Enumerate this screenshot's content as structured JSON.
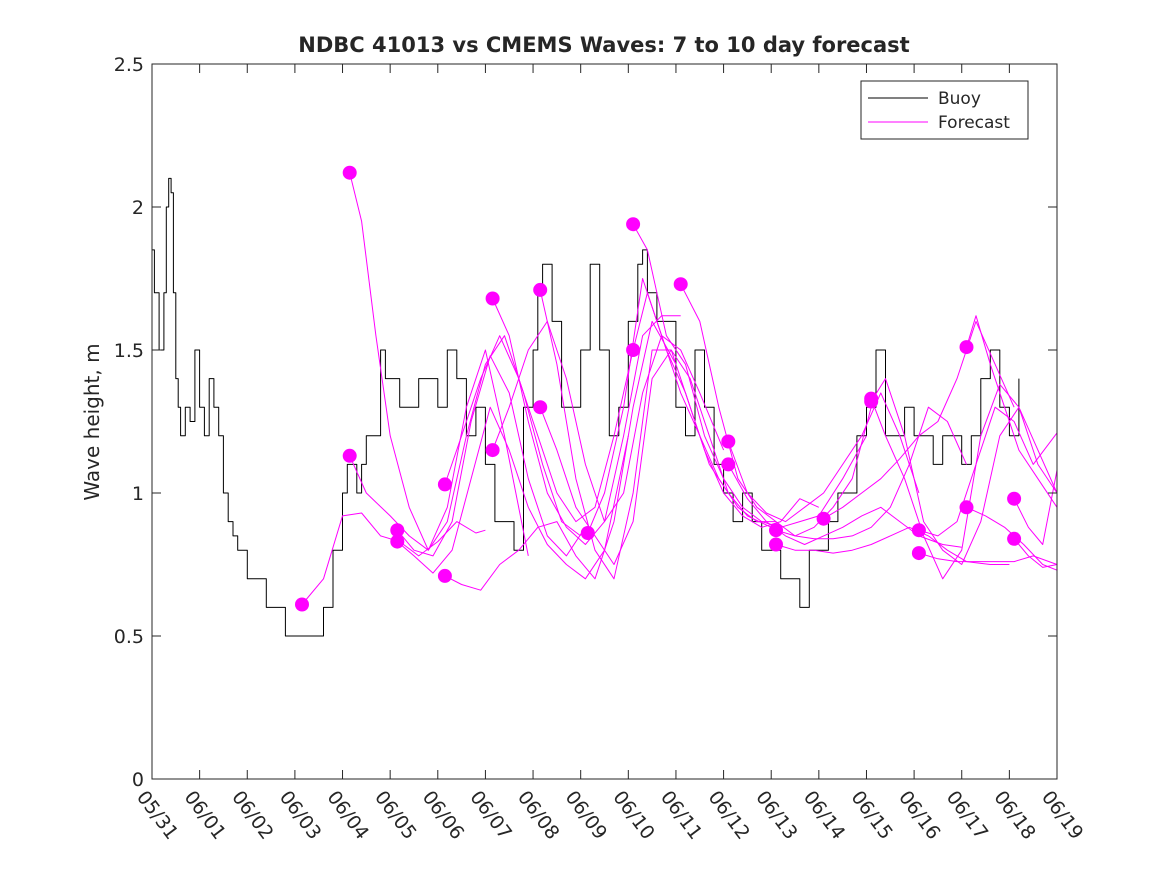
{
  "chart_data": {
    "type": "line",
    "title": "NDBC 41013 vs CMEMS Waves: 7 to 10 day forecast",
    "xlabel": "",
    "ylabel": "Wave height, m",
    "xlim_days_after_0531": [
      0,
      19
    ],
    "ylim": [
      0,
      2.5
    ],
    "yticks": [
      "0",
      "0.5",
      "1",
      "1.5",
      "2",
      "2.5"
    ],
    "xticks": [
      "05/31",
      "06/01",
      "06/02",
      "06/03",
      "06/04",
      "06/05",
      "06/06",
      "06/07",
      "06/08",
      "06/09",
      "06/10",
      "06/11",
      "06/12",
      "06/13",
      "06/14",
      "06/15",
      "06/16",
      "06/17",
      "06/18",
      "06/19"
    ],
    "grid": false,
    "legend_position": "top-right",
    "colors": {
      "buoy": "#000000",
      "forecast": "#ff00ff"
    },
    "series": [
      {
        "name": "Buoy",
        "x": [
          0,
          0.05,
          0.15,
          0.25,
          0.3,
          0.35,
          0.4,
          0.45,
          0.5,
          0.55,
          0.6,
          0.7,
          0.8,
          0.9,
          1.0,
          1.1,
          1.2,
          1.3,
          1.4,
          1.5,
          1.6,
          1.7,
          1.8,
          1.9,
          2.0,
          2.2,
          2.4,
          2.6,
          2.8,
          2.9,
          3.0,
          3.2,
          3.4,
          3.6,
          3.8,
          4.0,
          4.1,
          4.2,
          4.3,
          4.4,
          4.5,
          4.6,
          4.7,
          4.8,
          4.9,
          5.0,
          5.2,
          5.4,
          5.6,
          5.8,
          6.0,
          6.2,
          6.4,
          6.6,
          6.8,
          7.0,
          7.2,
          7.4,
          7.6,
          7.8,
          8.0,
          8.1,
          8.2,
          8.4,
          8.6,
          8.8,
          9.0,
          9.2,
          9.4,
          9.6,
          9.8,
          10.0,
          10.2,
          10.3,
          10.4,
          10.6,
          10.8,
          11.0,
          11.2,
          11.4,
          11.6,
          11.8,
          12.0,
          12.2,
          12.4,
          12.6,
          12.8,
          13.0,
          13.2,
          13.4,
          13.6,
          13.8,
          14.0,
          14.2,
          14.4,
          14.6,
          14.8,
          15.0,
          15.2,
          15.4,
          15.6,
          15.8,
          16.0,
          16.2,
          16.4,
          16.6,
          16.8,
          17.0,
          17.2,
          17.4,
          17.6,
          17.8,
          18.0,
          18.2
        ],
        "values": [
          1.85,
          1.7,
          1.5,
          1.7,
          2.0,
          2.1,
          2.05,
          1.7,
          1.4,
          1.3,
          1.2,
          1.3,
          1.25,
          1.5,
          1.3,
          1.2,
          1.4,
          1.3,
          1.2,
          1.0,
          0.9,
          0.85,
          0.8,
          0.8,
          0.7,
          0.7,
          0.6,
          0.6,
          0.5,
          0.5,
          0.5,
          0.5,
          0.5,
          0.6,
          0.8,
          1.0,
          1.1,
          1.1,
          1.0,
          1.1,
          1.2,
          1.2,
          1.2,
          1.5,
          1.4,
          1.4,
          1.3,
          1.3,
          1.4,
          1.4,
          1.3,
          1.5,
          1.4,
          1.2,
          1.3,
          1.1,
          0.9,
          0.9,
          0.8,
          1.3,
          1.5,
          1.7,
          1.8,
          1.6,
          1.3,
          1.3,
          1.5,
          1.8,
          1.5,
          1.2,
          1.3,
          1.6,
          1.8,
          1.85,
          1.7,
          1.6,
          1.6,
          1.3,
          1.2,
          1.5,
          1.3,
          1.1,
          1.0,
          0.9,
          1.0,
          0.9,
          0.8,
          0.8,
          0.7,
          0.7,
          0.6,
          0.8,
          0.8,
          0.9,
          1.0,
          1.0,
          1.2,
          1.3,
          1.5,
          1.2,
          1.2,
          1.3,
          1.2,
          1.2,
          1.1,
          1.2,
          1.2,
          1.1,
          1.2,
          1.4,
          1.5,
          1.3,
          1.2,
          1.4
        ]
      },
      {
        "name": "Forecast",
        "x": [
          3.15,
          3.6,
          4.0,
          4.4,
          4.8,
          5.2,
          5.6,
          6.0,
          6.4,
          6.8,
          7.0
        ],
        "values": [
          0.61,
          0.7,
          0.92,
          0.93,
          0.85,
          0.83,
          0.78,
          0.83,
          0.9,
          0.86,
          0.87
        ]
      },
      {
        "name": "Forecast",
        "x": [
          4.15,
          4.4,
          4.7,
          5.0,
          5.4,
          5.8,
          6.2,
          6.6,
          7.0,
          7.4,
          7.9
        ],
        "values": [
          2.12,
          1.95,
          1.55,
          1.2,
          0.95,
          0.8,
          0.95,
          1.3,
          1.5,
          1.2,
          0.78
        ]
      },
      {
        "name": "Forecast",
        "x": [
          4.15,
          4.5,
          5.0,
          5.4,
          5.8,
          6.2,
          6.6,
          7.0,
          7.4,
          7.8,
          8.2,
          8.6,
          9.0
        ],
        "values": [
          1.13,
          1.0,
          0.92,
          0.85,
          0.8,
          0.9,
          1.2,
          1.45,
          1.55,
          1.35,
          1.1,
          0.9,
          0.85
        ]
      },
      {
        "name": "Forecast",
        "x": [
          5.15,
          5.5,
          5.9,
          6.3,
          6.7,
          7.1,
          7.5,
          7.9,
          8.3,
          8.7,
          9.1
        ],
        "values": [
          0.87,
          0.8,
          0.78,
          0.9,
          1.25,
          1.48,
          1.35,
          1.05,
          0.85,
          0.78,
          0.88
        ]
      },
      {
        "name": "Forecast",
        "x": [
          5.15,
          5.5,
          5.9,
          6.3,
          6.7,
          7.1,
          7.5,
          7.9,
          8.3,
          8.7,
          9.1,
          9.5,
          10.0
        ],
        "values": [
          0.83,
          0.78,
          0.72,
          0.8,
          1.05,
          1.3,
          1.15,
          0.95,
          0.82,
          0.75,
          0.7,
          0.8,
          1.2
        ]
      },
      {
        "name": "Forecast",
        "x": [
          6.15,
          6.5,
          6.9,
          7.3,
          7.7,
          8.1,
          8.5,
          8.9,
          9.3,
          9.7,
          10.1
        ],
        "values": [
          1.03,
          1.2,
          1.4,
          1.55,
          1.4,
          1.2,
          1.0,
          0.9,
          0.95,
          1.2,
          1.5
        ]
      },
      {
        "name": "Forecast",
        "x": [
          6.15,
          6.5,
          6.9,
          7.3,
          7.7,
          8.1,
          8.5,
          8.9,
          9.3,
          9.7,
          10.1,
          10.5,
          11.0
        ],
        "values": [
          0.71,
          0.68,
          0.66,
          0.75,
          0.8,
          0.88,
          0.9,
          0.78,
          0.7,
          0.9,
          1.3,
          1.6,
          1.45
        ]
      },
      {
        "name": "Forecast",
        "x": [
          7.15,
          7.5,
          7.9,
          8.3,
          8.7,
          9.1,
          9.5,
          9.9,
          10.3,
          10.7,
          11.1
        ],
        "values": [
          1.68,
          1.55,
          1.25,
          1.0,
          0.88,
          0.82,
          0.9,
          1.2,
          1.55,
          1.62,
          1.62
        ]
      },
      {
        "name": "Forecast",
        "x": [
          7.15,
          7.5,
          7.9,
          8.3,
          8.7,
          9.1,
          9.5,
          9.9,
          10.3,
          10.7,
          11.1,
          11.5,
          12.0
        ],
        "values": [
          1.15,
          1.3,
          1.5,
          1.6,
          1.4,
          1.1,
          0.9,
          1.0,
          1.35,
          1.55,
          1.5,
          1.35,
          1.15
        ]
      },
      {
        "name": "Forecast",
        "x": [
          8.15,
          8.5,
          8.9,
          9.3,
          9.7,
          10.1,
          10.5,
          10.9,
          11.3,
          11.7,
          12.1
        ],
        "values": [
          1.71,
          1.45,
          1.05,
          0.8,
          0.7,
          1.0,
          1.5,
          1.5,
          1.3,
          1.1,
          1.0
        ]
      },
      {
        "name": "Forecast",
        "x": [
          8.15,
          8.5,
          8.9,
          9.3,
          9.7,
          10.1,
          10.5,
          10.9,
          11.3,
          11.7,
          12.1,
          12.5,
          13.0
        ],
        "values": [
          1.3,
          1.15,
          0.95,
          0.85,
          0.75,
          0.9,
          1.4,
          1.5,
          1.4,
          1.2,
          1.0,
          0.92,
          0.88
        ]
      },
      {
        "name": "Forecast",
        "x": [
          9.15,
          9.5,
          9.9,
          10.3,
          10.7,
          11.1,
          11.5,
          11.9,
          12.3,
          12.7,
          13.1
        ],
        "values": [
          0.86,
          1.0,
          1.3,
          1.75,
          1.55,
          1.35,
          1.2,
          1.05,
          0.95,
          0.9,
          0.9
        ]
      },
      {
        "name": "Forecast",
        "x": [
          10.1,
          10.4,
          10.8,
          11.2,
          11.6,
          12.0,
          12.4,
          12.8,
          13.2,
          13.6,
          14.0,
          14.5,
          15.0
        ],
        "values": [
          1.94,
          1.85,
          1.55,
          1.45,
          1.2,
          1.05,
          0.95,
          0.9,
          0.88,
          0.9,
          0.92,
          1.05,
          1.2
        ]
      },
      {
        "name": "Forecast",
        "x": [
          10.1,
          10.4,
          10.8,
          11.2,
          11.6,
          12.0,
          12.4,
          12.8,
          13.2,
          13.6,
          14.0
        ],
        "values": [
          1.5,
          1.7,
          1.5,
          1.35,
          1.15,
          1.0,
          0.92,
          0.88,
          0.9,
          0.98,
          0.95
        ]
      },
      {
        "name": "Forecast",
        "x": [
          11.1,
          11.5,
          11.9,
          12.3,
          12.7,
          13.1,
          13.5,
          13.9,
          14.3,
          14.7,
          15.1
        ],
        "values": [
          1.73,
          1.6,
          1.3,
          1.05,
          0.95,
          0.9,
          0.85,
          0.88,
          0.95,
          1.05,
          1.3
        ]
      },
      {
        "name": "Forecast",
        "x": [
          12.1,
          12.5,
          12.9,
          13.3,
          13.7,
          14.1,
          14.5,
          14.9,
          15.3,
          15.7,
          16.1
        ],
        "values": [
          1.18,
          1.0,
          0.93,
          0.9,
          0.95,
          1.0,
          1.1,
          1.2,
          1.35,
          1.2,
          1.0
        ]
      },
      {
        "name": "Forecast",
        "x": [
          12.1,
          12.5,
          12.9,
          13.3,
          13.7,
          14.1,
          14.5,
          14.9,
          15.3,
          15.7,
          16.1,
          16.6,
          17.0
        ],
        "values": [
          1.1,
          0.98,
          0.9,
          0.85,
          0.82,
          0.85,
          0.88,
          0.92,
          0.95,
          0.9,
          0.85,
          0.82,
          0.81
        ]
      },
      {
        "name": "Forecast",
        "x": [
          13.1,
          13.5,
          13.9,
          14.3,
          14.7,
          15.1,
          15.5,
          15.9,
          16.3,
          16.7,
          17.1
        ],
        "values": [
          0.87,
          0.85,
          0.84,
          0.84,
          0.85,
          0.88,
          0.95,
          1.1,
          1.3,
          1.25,
          1.1
        ]
      },
      {
        "name": "Forecast",
        "x": [
          13.1,
          13.5,
          13.9,
          14.3,
          14.7,
          15.1,
          15.5,
          15.9,
          16.3,
          16.7,
          17.1,
          17.6,
          18.0
        ],
        "values": [
          0.82,
          0.8,
          0.8,
          0.79,
          0.8,
          0.82,
          0.85,
          0.88,
          0.85,
          0.8,
          0.76,
          0.75,
          0.75
        ]
      },
      {
        "name": "Forecast",
        "x": [
          14.1,
          14.5,
          14.9,
          15.3,
          15.7,
          16.1,
          16.5,
          16.9,
          17.3,
          17.7,
          18.1
        ],
        "values": [
          0.91,
          0.95,
          1.0,
          1.05,
          1.12,
          1.2,
          1.25,
          1.4,
          1.6,
          1.45,
          1.3
        ]
      },
      {
        "name": "Forecast",
        "x": [
          15.1,
          15.4,
          15.8,
          16.2,
          16.6,
          17.0,
          17.4,
          17.8,
          18.2,
          18.6,
          19.0
        ],
        "values": [
          1.32,
          1.4,
          1.2,
          0.9,
          0.8,
          0.75,
          0.9,
          1.2,
          1.3,
          1.15,
          1.0
        ]
      },
      {
        "name": "Forecast",
        "x": [
          15.1,
          15.4,
          15.8,
          16.2,
          16.6,
          17.0,
          17.4,
          17.8,
          18.2,
          18.6,
          19.0
        ],
        "values": [
          1.33,
          1.2,
          1.05,
          0.85,
          0.7,
          0.8,
          1.2,
          1.38,
          1.3,
          1.1,
          1.0
        ]
      },
      {
        "name": "Forecast",
        "x": [
          16.1,
          16.5,
          16.9,
          17.3,
          17.7,
          18.1,
          18.5,
          19.0
        ],
        "values": [
          0.87,
          0.85,
          0.9,
          1.1,
          1.3,
          1.25,
          1.1,
          1.21
        ]
      },
      {
        "name": "Forecast",
        "x": [
          16.1,
          16.5,
          16.9,
          17.3,
          17.7,
          18.1,
          18.5,
          19.0
        ],
        "values": [
          0.79,
          0.77,
          0.76,
          0.76,
          0.76,
          0.76,
          0.78,
          0.75
        ]
      },
      {
        "name": "Forecast",
        "x": [
          17.1,
          17.3,
          17.6,
          17.9,
          18.2,
          18.6,
          19.0
        ],
        "values": [
          1.51,
          1.62,
          1.45,
          1.3,
          1.15,
          1.05,
          0.95
        ]
      },
      {
        "name": "Forecast",
        "x": [
          17.1,
          17.5,
          17.9,
          18.3,
          18.7,
          19.0
        ],
        "values": [
          0.95,
          0.92,
          0.88,
          0.82,
          0.75,
          0.73
        ]
      },
      {
        "name": "Forecast",
        "x": [
          18.1,
          18.4,
          18.7,
          19.0
        ],
        "values": [
          0.98,
          0.88,
          0.82,
          1.08
        ]
      },
      {
        "name": "Forecast",
        "x": [
          18.1,
          18.4,
          18.7,
          19.0
        ],
        "values": [
          0.84,
          0.78,
          0.74,
          0.75
        ]
      }
    ]
  }
}
